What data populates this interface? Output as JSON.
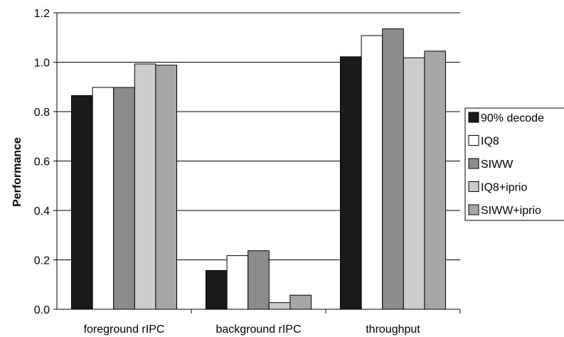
{
  "chart_data": {
    "type": "bar",
    "title": "",
    "xlabel": "",
    "ylabel": "Performance",
    "ylim": [
      0,
      1.2
    ],
    "yticks": [
      "0.0",
      "0.2",
      "0.4",
      "0.6",
      "0.8",
      "1.0",
      "1.2"
    ],
    "categories": [
      "foreground rIPC",
      "background rIPC",
      "throughput"
    ],
    "grid": "horizontal",
    "legend_position": "right",
    "series": [
      {
        "name": "90% decode",
        "color": "#1a1a1a",
        "values": [
          0.865,
          0.157,
          1.022
        ]
      },
      {
        "name": "IQ8",
        "color": "#ffffff",
        "values": [
          0.898,
          0.217,
          1.108
        ]
      },
      {
        "name": "SIWW",
        "color": "#8c8c8c",
        "values": [
          0.898,
          0.237,
          1.135
        ]
      },
      {
        "name": "IQ8+iprio",
        "color": "#cccccc",
        "values": [
          0.993,
          0.027,
          1.018
        ]
      },
      {
        "name": "SIWW+iprio",
        "color": "#a6a6a6",
        "values": [
          0.988,
          0.057,
          1.045
        ]
      }
    ]
  }
}
